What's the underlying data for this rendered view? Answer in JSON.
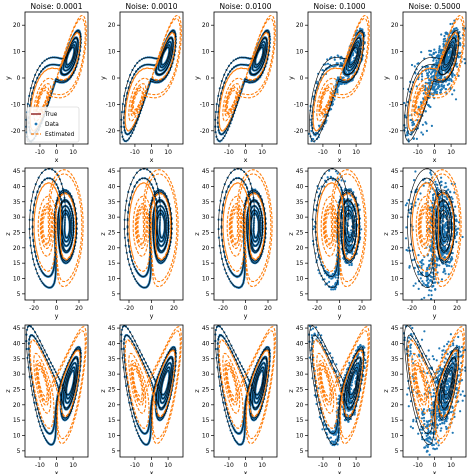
{
  "colors": {
    "true_line": "#000000",
    "data_points": "#1f77b4",
    "estimated_line": "#ff7f0e",
    "axes": "#000000",
    "background": "#ffffff"
  },
  "legend": {
    "location": "lower-left",
    "panel": "row 1, column 1",
    "entries": [
      "True",
      "Data",
      "Estimated"
    ]
  },
  "chart_data": [
    {
      "type": "line",
      "row": 1,
      "col": 1,
      "title": "Noise: 0.0001",
      "noise": 0.0001,
      "xlabel": "x",
      "ylabel": "y",
      "x_field": "x",
      "y_field": "y",
      "xlim": [
        -19,
        19
      ],
      "ylim": [
        -25,
        25
      ],
      "xticks": [
        -10,
        0,
        10
      ],
      "yticks": [
        -20,
        -10,
        0,
        10,
        20
      ],
      "series": [
        {
          "name": "True"
        },
        {
          "name": "Data"
        },
        {
          "name": "Estimated"
        }
      ]
    },
    {
      "type": "line",
      "row": 1,
      "col": 2,
      "title": "Noise: 0.0010",
      "noise": 0.001,
      "xlabel": "x",
      "ylabel": "y",
      "x_field": "x",
      "y_field": "y",
      "xlim": [
        -19,
        19
      ],
      "ylim": [
        -25,
        25
      ],
      "xticks": [
        -10,
        0,
        10
      ],
      "yticks": [
        -20,
        -10,
        0,
        10,
        20
      ],
      "series": [
        {
          "name": "True"
        },
        {
          "name": "Data"
        },
        {
          "name": "Estimated"
        }
      ]
    },
    {
      "type": "line",
      "row": 1,
      "col": 3,
      "title": "Noise: 0.0100",
      "noise": 0.01,
      "xlabel": "x",
      "ylabel": "y",
      "x_field": "x",
      "y_field": "y",
      "xlim": [
        -19,
        19
      ],
      "ylim": [
        -25,
        25
      ],
      "xticks": [
        -10,
        0,
        10
      ],
      "yticks": [
        -20,
        -10,
        0,
        10,
        20
      ],
      "series": [
        {
          "name": "True"
        },
        {
          "name": "Data"
        },
        {
          "name": "Estimated"
        }
      ]
    },
    {
      "type": "line",
      "row": 1,
      "col": 4,
      "title": "Noise: 0.1000",
      "noise": 0.1,
      "xlabel": "x",
      "ylabel": "y",
      "x_field": "x",
      "y_field": "y",
      "xlim": [
        -19,
        19
      ],
      "ylim": [
        -25,
        25
      ],
      "xticks": [
        -10,
        0,
        10
      ],
      "yticks": [
        -20,
        -10,
        0,
        10,
        20
      ],
      "series": [
        {
          "name": "True"
        },
        {
          "name": "Data"
        },
        {
          "name": "Estimated"
        }
      ]
    },
    {
      "type": "line",
      "row": 1,
      "col": 5,
      "title": "Noise: 0.5000",
      "noise": 0.5,
      "xlabel": "x",
      "ylabel": "y",
      "x_field": "x",
      "y_field": "y",
      "xlim": [
        -19,
        19
      ],
      "ylim": [
        -25,
        25
      ],
      "xticks": [
        -10,
        0,
        10
      ],
      "yticks": [
        -20,
        -10,
        0,
        10,
        20
      ],
      "series": [
        {
          "name": "True"
        },
        {
          "name": "Data"
        },
        {
          "name": "Estimated"
        }
      ]
    },
    {
      "type": "line",
      "row": 2,
      "col": 1,
      "title": "",
      "noise": 0.0001,
      "xlabel": "y",
      "ylabel": "z",
      "x_field": "y",
      "y_field": "z",
      "xlim": [
        -28,
        28
      ],
      "ylim": [
        3,
        46
      ],
      "xticks": [
        -20,
        0,
        20
      ],
      "yticks": [
        5,
        10,
        15,
        20,
        25,
        30,
        35,
        40,
        45
      ],
      "series": [
        {
          "name": "True"
        },
        {
          "name": "Data"
        },
        {
          "name": "Estimated"
        }
      ]
    },
    {
      "type": "line",
      "row": 2,
      "col": 2,
      "title": "",
      "noise": 0.001,
      "xlabel": "y",
      "ylabel": "z",
      "x_field": "y",
      "y_field": "z",
      "xlim": [
        -28,
        28
      ],
      "ylim": [
        3,
        46
      ],
      "xticks": [
        -20,
        0,
        20
      ],
      "yticks": [
        5,
        10,
        15,
        20,
        25,
        30,
        35,
        40,
        45
      ],
      "series": [
        {
          "name": "True"
        },
        {
          "name": "Data"
        },
        {
          "name": "Estimated"
        }
      ]
    },
    {
      "type": "line",
      "row": 2,
      "col": 3,
      "title": "",
      "noise": 0.01,
      "xlabel": "y",
      "ylabel": "z",
      "x_field": "y",
      "y_field": "z",
      "xlim": [
        -28,
        28
      ],
      "ylim": [
        3,
        46
      ],
      "xticks": [
        -20,
        0,
        20
      ],
      "yticks": [
        5,
        10,
        15,
        20,
        25,
        30,
        35,
        40,
        45
      ],
      "series": [
        {
          "name": "True"
        },
        {
          "name": "Data"
        },
        {
          "name": "Estimated"
        }
      ]
    },
    {
      "type": "line",
      "row": 2,
      "col": 4,
      "title": "",
      "noise": 0.1,
      "xlabel": "y",
      "ylabel": "z",
      "x_field": "y",
      "y_field": "z",
      "xlim": [
        -28,
        28
      ],
      "ylim": [
        3,
        46
      ],
      "xticks": [
        -20,
        0,
        20
      ],
      "yticks": [
        5,
        10,
        15,
        20,
        25,
        30,
        35,
        40,
        45
      ],
      "series": [
        {
          "name": "True"
        },
        {
          "name": "Data"
        },
        {
          "name": "Estimated"
        }
      ]
    },
    {
      "type": "line",
      "row": 2,
      "col": 5,
      "title": "",
      "noise": 0.5,
      "xlabel": "y",
      "ylabel": "z",
      "x_field": "y",
      "y_field": "z",
      "xlim": [
        -28,
        28
      ],
      "ylim": [
        3,
        46
      ],
      "xticks": [
        -20,
        0,
        20
      ],
      "yticks": [
        5,
        10,
        15,
        20,
        25,
        30,
        35,
        40,
        45
      ],
      "series": [
        {
          "name": "True"
        },
        {
          "name": "Data"
        },
        {
          "name": "Estimated"
        }
      ]
    },
    {
      "type": "line",
      "row": 3,
      "col": 1,
      "title": "",
      "noise": 0.0001,
      "xlabel": "x",
      "ylabel": "z",
      "x_field": "x",
      "y_field": "z",
      "xlim": [
        -19,
        19
      ],
      "ylim": [
        3,
        46
      ],
      "xticks": [
        -10,
        0,
        10
      ],
      "yticks": [
        5,
        10,
        15,
        20,
        25,
        30,
        35,
        40,
        45
      ],
      "series": [
        {
          "name": "True"
        },
        {
          "name": "Data"
        },
        {
          "name": "Estimated"
        }
      ]
    },
    {
      "type": "line",
      "row": 3,
      "col": 2,
      "title": "",
      "noise": 0.001,
      "xlabel": "x",
      "ylabel": "z",
      "x_field": "x",
      "y_field": "z",
      "xlim": [
        -19,
        19
      ],
      "ylim": [
        3,
        46
      ],
      "xticks": [
        -10,
        0,
        10
      ],
      "yticks": [
        5,
        10,
        15,
        20,
        25,
        30,
        35,
        40,
        45
      ],
      "series": [
        {
          "name": "True"
        },
        {
          "name": "Data"
        },
        {
          "name": "Estimated"
        }
      ]
    },
    {
      "type": "line",
      "row": 3,
      "col": 3,
      "title": "",
      "noise": 0.01,
      "xlabel": "x",
      "ylabel": "z",
      "x_field": "x",
      "y_field": "z",
      "xlim": [
        -19,
        19
      ],
      "ylim": [
        3,
        46
      ],
      "xticks": [
        -10,
        0,
        10
      ],
      "yticks": [
        5,
        10,
        15,
        20,
        25,
        30,
        35,
        40,
        45
      ],
      "series": [
        {
          "name": "True"
        },
        {
          "name": "Data"
        },
        {
          "name": "Estimated"
        }
      ]
    },
    {
      "type": "line",
      "row": 3,
      "col": 4,
      "title": "",
      "noise": 0.1,
      "xlabel": "x",
      "ylabel": "z",
      "x_field": "x",
      "y_field": "z",
      "xlim": [
        -19,
        19
      ],
      "ylim": [
        3,
        46
      ],
      "xticks": [
        -10,
        0,
        10
      ],
      "yticks": [
        5,
        10,
        15,
        20,
        25,
        30,
        35,
        40,
        45
      ],
      "series": [
        {
          "name": "True"
        },
        {
          "name": "Data"
        },
        {
          "name": "Estimated"
        }
      ]
    },
    {
      "type": "line",
      "row": 3,
      "col": 5,
      "title": "",
      "noise": 0.5,
      "xlabel": "x",
      "ylabel": "z",
      "x_field": "x",
      "y_field": "z",
      "xlim": [
        -19,
        19
      ],
      "ylim": [
        3,
        46
      ],
      "xticks": [
        -10,
        0,
        10
      ],
      "yticks": [
        5,
        10,
        15,
        20,
        25,
        30,
        35,
        40,
        45
      ],
      "series": [
        {
          "name": "True"
        },
        {
          "name": "Data"
        },
        {
          "name": "Estimated"
        }
      ]
    }
  ]
}
